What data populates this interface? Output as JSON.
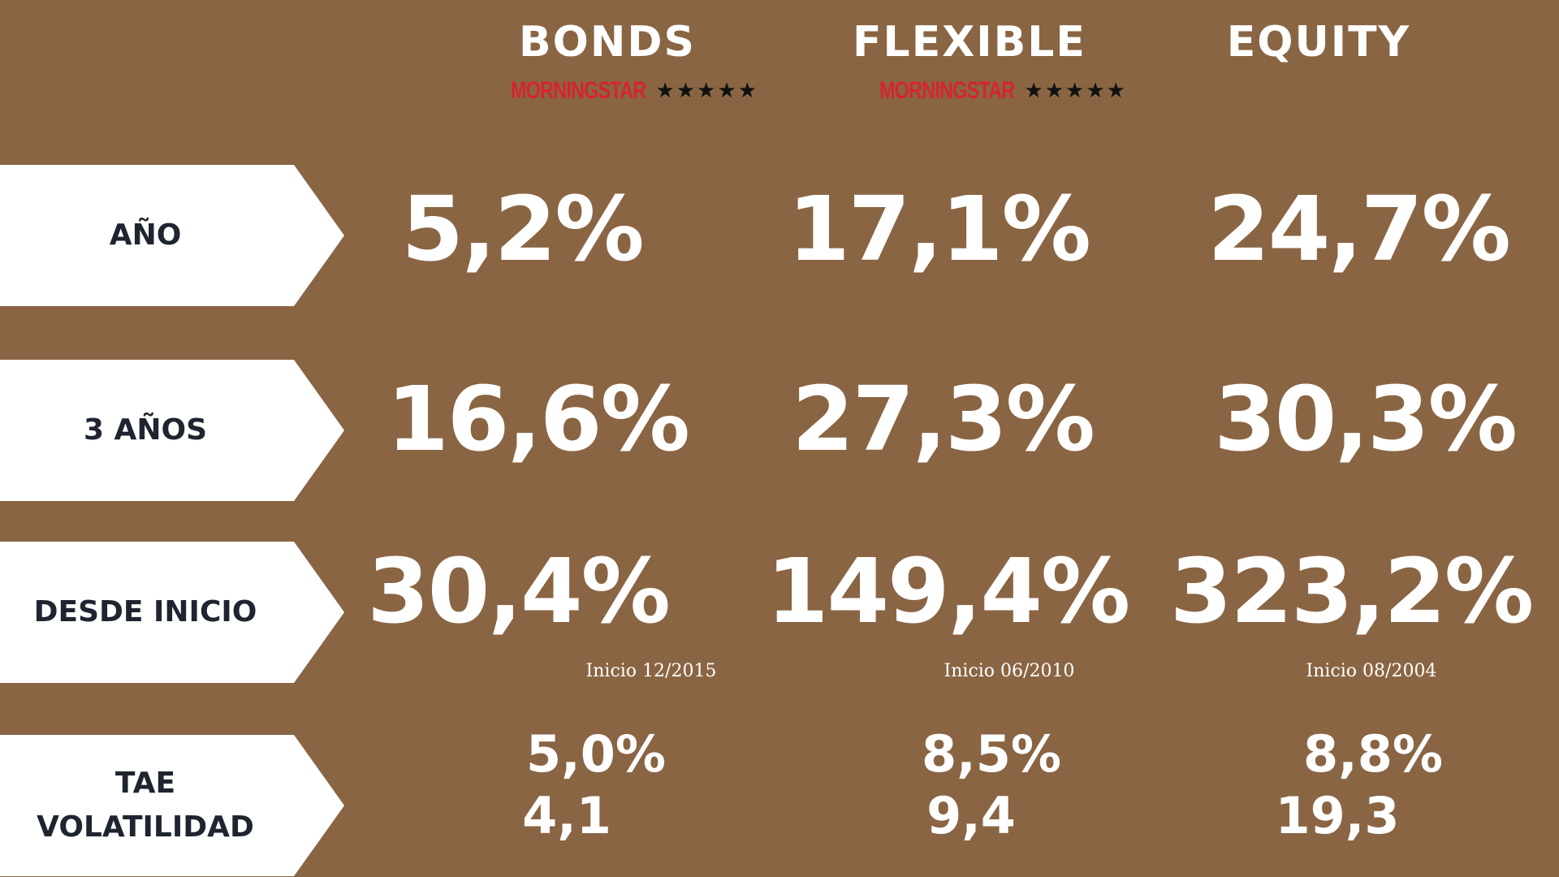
{
  "columns": [
    {
      "name": "BONDS",
      "brand": "MORNINGSTAR",
      "stars": "★★★★★",
      "start": "Inicio 12/2015"
    },
    {
      "name": "FLEXIBLE",
      "brand": "MORNINGSTAR",
      "stars": "★★★★★",
      "start": "Inicio 06/2010"
    },
    {
      "name": "EQUITY",
      "start": "Inicio 08/2004"
    }
  ],
  "rows": {
    "year": {
      "label": "AÑO",
      "values": [
        "5,2%",
        "17,1%",
        "24,7%"
      ]
    },
    "three_years": {
      "label": "3 AÑOS",
      "values": [
        "16,6%",
        "27,3%",
        "30,3%"
      ]
    },
    "since_start": {
      "label": "DESDE INICIO",
      "values": [
        "30,4%",
        "149,4%",
        "323,2%"
      ]
    },
    "tae": {
      "label": "TAE",
      "values": [
        "5,0%",
        "8,5%",
        "8,8%"
      ]
    },
    "volatility": {
      "label": "VOLATILIDAD",
      "values": [
        "4,1",
        "9,4",
        "19,3"
      ]
    }
  },
  "colors": {
    "background": "#8a6543",
    "label_box": "#ffffff",
    "label_text": "#1e2530",
    "value_text": "#ffffff",
    "brand_red": "#d62430"
  }
}
